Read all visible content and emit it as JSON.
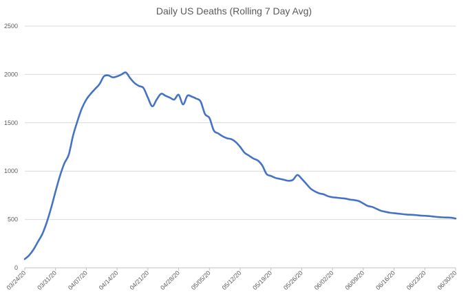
{
  "chart_data": {
    "type": "line",
    "title": "Daily US Deaths (Rolling 7 Day Avg)",
    "xlabel": "",
    "ylabel": "",
    "ylim": [
      0,
      2500
    ],
    "yticks": [
      0,
      500,
      1000,
      1500,
      2000,
      2500
    ],
    "grid": true,
    "legend": "none",
    "x_tick_labels": [
      "03/24/20",
      "03/31/20",
      "04/07/20",
      "04/14/20",
      "04/21/20",
      "04/28/20",
      "05/05/20",
      "05/12/20",
      "05/19/20",
      "05/26/20",
      "06/02/20",
      "06/09/20",
      "06/16/20",
      "06/23/20",
      "06/30/20"
    ],
    "colors": {
      "line": "#4472c4",
      "grid": "#d9d9d9",
      "text": "#595959"
    },
    "series": [
      {
        "x": [
          "03/24/20",
          "03/25/20",
          "03/26/20",
          "03/27/20",
          "03/28/20",
          "03/29/20",
          "03/30/20",
          "03/31/20",
          "04/01/20",
          "04/02/20",
          "04/03/20",
          "04/04/20",
          "04/05/20",
          "04/06/20",
          "04/07/20",
          "04/08/20",
          "04/09/20",
          "04/10/20",
          "04/11/20",
          "04/12/20",
          "04/13/20",
          "04/14/20",
          "04/15/20",
          "04/16/20",
          "04/17/20",
          "04/18/20",
          "04/19/20",
          "04/20/20",
          "04/21/20",
          "04/22/20",
          "04/23/20",
          "04/24/20",
          "04/25/20",
          "04/26/20",
          "04/27/20",
          "04/28/20",
          "04/29/20",
          "04/30/20",
          "05/01/20",
          "05/02/20",
          "05/03/20",
          "05/04/20",
          "05/05/20",
          "05/06/20",
          "05/07/20",
          "05/08/20",
          "05/09/20",
          "05/10/20",
          "05/11/20",
          "05/12/20",
          "05/13/20",
          "05/14/20",
          "05/15/20",
          "05/16/20",
          "05/17/20",
          "05/18/20",
          "05/19/20",
          "05/20/20",
          "05/21/20",
          "05/22/20",
          "05/23/20",
          "05/24/20",
          "05/25/20",
          "05/26/20",
          "05/27/20",
          "05/28/20",
          "05/29/20",
          "05/30/20",
          "05/31/20",
          "06/01/20",
          "06/02/20",
          "06/03/20",
          "06/04/20",
          "06/05/20",
          "06/06/20",
          "06/07/20",
          "06/08/20",
          "06/09/20",
          "06/10/20",
          "06/11/20",
          "06/12/20",
          "06/13/20",
          "06/14/20",
          "06/15/20",
          "06/16/20",
          "06/17/20",
          "06/18/20",
          "06/19/20",
          "06/20/20",
          "06/21/20",
          "06/22/20",
          "06/23/20",
          "06/24/20",
          "06/25/20",
          "06/26/20",
          "06/27/20",
          "06/28/20",
          "06/29/20",
          "06/30/20"
        ],
        "values": [
          90,
          130,
          190,
          270,
          350,
          470,
          620,
          790,
          950,
          1080,
          1170,
          1370,
          1520,
          1650,
          1740,
          1800,
          1850,
          1900,
          1980,
          1990,
          1970,
          1980,
          2000,
          2020,
          1960,
          1910,
          1880,
          1860,
          1760,
          1670,
          1740,
          1800,
          1780,
          1760,
          1740,
          1790,
          1690,
          1780,
          1770,
          1750,
          1720,
          1590,
          1550,
          1420,
          1390,
          1360,
          1340,
          1330,
          1300,
          1250,
          1190,
          1160,
          1130,
          1110,
          1060,
          970,
          950,
          930,
          920,
          910,
          900,
          910,
          960,
          920,
          870,
          820,
          790,
          770,
          760,
          740,
          730,
          725,
          720,
          715,
          705,
          700,
          690,
          665,
          640,
          630,
          610,
          590,
          580,
          570,
          565,
          560,
          555,
          550,
          548,
          545,
          540,
          538,
          535,
          530,
          525,
          522,
          520,
          518,
          510
        ]
      }
    ]
  }
}
